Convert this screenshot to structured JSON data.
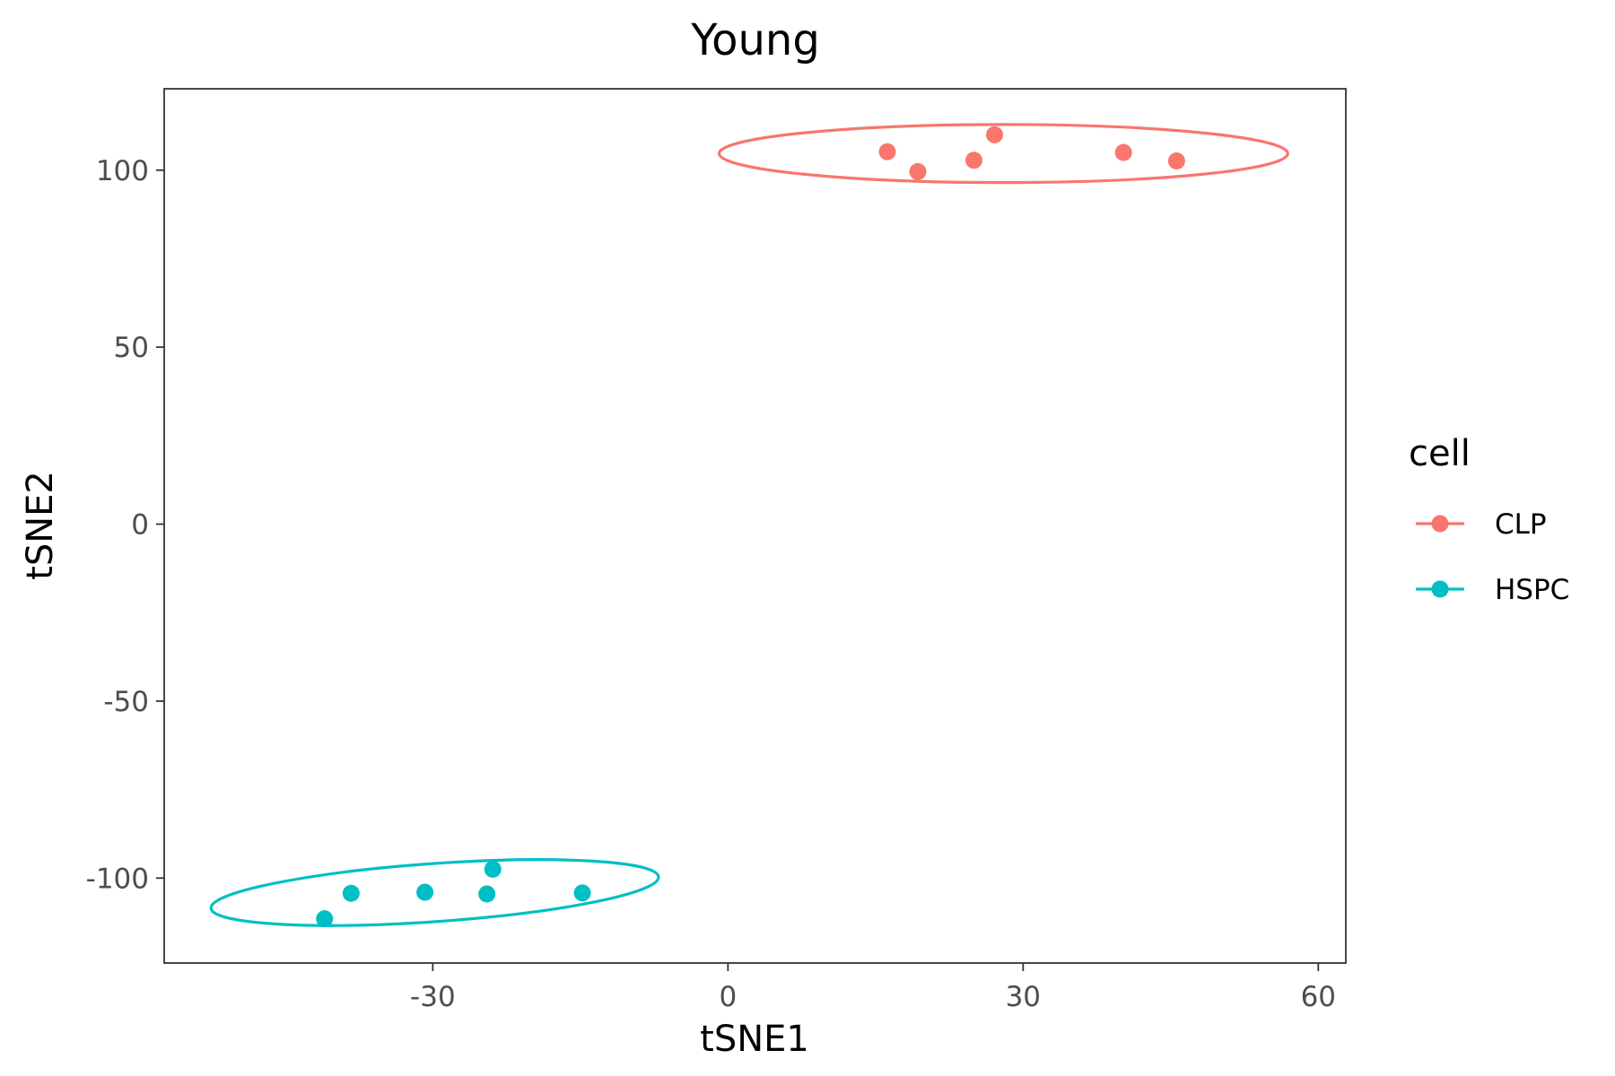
{
  "chart_data": {
    "type": "scatter",
    "title": "Young",
    "xlabel": "tSNE1",
    "ylabel": "tSNE2",
    "xlim": [
      -57.3,
      62.8
    ],
    "ylim": [
      -124,
      123
    ],
    "xticks": [
      -30,
      0,
      30,
      60
    ],
    "yticks": [
      -100,
      -50,
      0,
      50,
      100
    ],
    "xtick_labels": [
      "-30",
      "0",
      "30",
      "60"
    ],
    "ytick_labels": [
      "-100",
      "-50",
      "0",
      "50",
      "100"
    ],
    "grid": false,
    "legend": {
      "title": "cell",
      "position": "right"
    },
    "series": [
      {
        "name": "CLP",
        "color": "#F8766D",
        "points": [
          {
            "x": 16.2,
            "y": 105.2
          },
          {
            "x": 19.3,
            "y": 99.6
          },
          {
            "x": 25.0,
            "y": 102.8
          },
          {
            "x": 27.1,
            "y": 110.0
          },
          {
            "x": 40.2,
            "y": 105.0
          },
          {
            "x": 45.6,
            "y": 102.6
          }
        ],
        "ellipse": {
          "cx": 28.0,
          "cy": 104.7,
          "rx": 28.9,
          "ry": 8.2,
          "angle": 0
        }
      },
      {
        "name": "HSPC",
        "color": "#00BFC4",
        "points": [
          {
            "x": -41.0,
            "y": -111.5
          },
          {
            "x": -38.3,
            "y": -104.3
          },
          {
            "x": -30.8,
            "y": -104.0
          },
          {
            "x": -24.5,
            "y": -104.5
          },
          {
            "x": -23.9,
            "y": -97.5
          },
          {
            "x": -14.8,
            "y": -104.2
          }
        ],
        "ellipse": {
          "cx": -29.8,
          "cy": -104.1,
          "rx": 22.8,
          "ry": 8.2,
          "angle": 4
        }
      }
    ]
  }
}
